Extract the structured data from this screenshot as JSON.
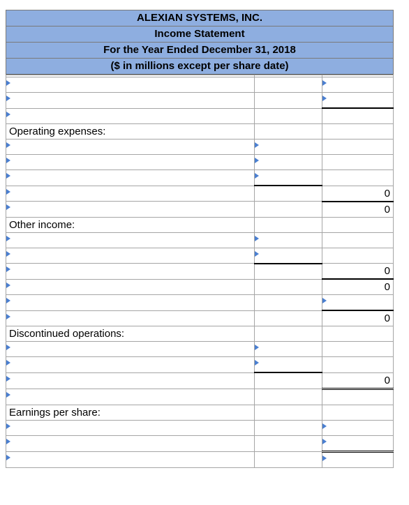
{
  "header": {
    "company": "ALEXIAN SYSTEMS, INC.",
    "statement": "Income Statement",
    "period": "For the Year Ended December 31, 2018",
    "units": "($ in millions except per share date)"
  },
  "sections": {
    "operating_expenses": "Operating expenses:",
    "other_income": "Other income:",
    "discontinued_operations": "Discontinued operations:",
    "earnings_per_share": "Earnings per share:"
  },
  "values": {
    "total_operating_expenses": "0",
    "operating_income": "0",
    "total_other_income": "0",
    "income_before_tax": "0",
    "income_from_continuing_ops": "0",
    "discontinued_total": "0"
  },
  "colors": {
    "header_bg": "#8eaee0",
    "input_marker": "#4a7fd1"
  }
}
